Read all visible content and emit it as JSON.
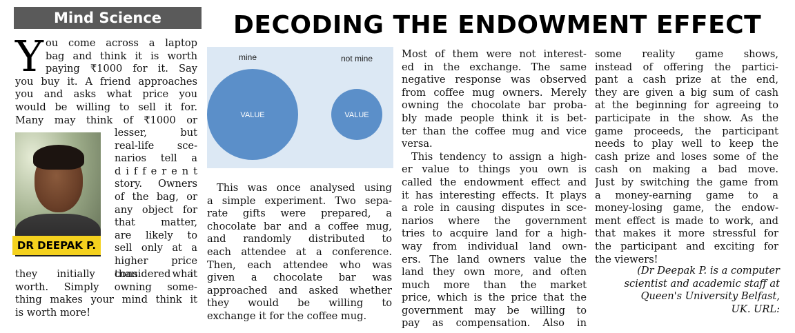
{
  "section": "Mind Science",
  "headline": "DECODING THE ENDOWMENT EFFECT",
  "byline": "DR DEEPAK P.",
  "dropcap": "Y",
  "col1": [
    "ou come across a laptop",
    "bag and think it is worth",
    "paying ₹1000 for it. Say",
    "you buy it. A friend approaches",
    "you and asks what price you",
    "would be willing to sell it for.",
    "Many may think of ₹1000 or",
    "lesser, but",
    "real-life sce-",
    "narios tell a",
    "d i f f e r e n t",
    "story. Owners",
    "of the bag, or",
    "any object for",
    "that matter,",
    "are likely to",
    "sell only at a",
    "higher price",
    "than what",
    "they initially considered it",
    "worth. Simply owning some-",
    "thing makes your mind think it",
    "is worth more!"
  ],
  "diagram": {
    "left_label": "mine",
    "right_label": "not mine",
    "left_circle": "VALUE",
    "right_circle": "VALUE",
    "circle_color": "#5b8fc9",
    "background": "#dce8f4"
  },
  "col2": [
    "This was once analysed using",
    "a simple experiment. Two sepa-",
    "rate gifts were prepared, a",
    "chocolate bar and a coffee mug,",
    "and randomly distributed to",
    "each attendee at a conference.",
    "Then, each attendee who was",
    "given a chocolate bar was",
    "approached and asked whether",
    "they would be willing to",
    "exchange it for the coffee mug."
  ],
  "col3": [
    "Most of them were not interest-",
    "ed in the exchange. The same",
    "negative response was observed",
    "from coffee mug owners. Merely",
    "owning the chocolate bar proba-",
    "bly made people think it is bet-",
    "ter than the coffee mug and vice",
    "versa.",
    "This tendency to assign a high-",
    "er value to things you own is",
    "called the endowment effect and",
    "it has interesting effects. It plays",
    "a role in causing disputes in sce-",
    "narios where the government",
    "tries to acquire land for a high-",
    "way from individual land own-",
    "ers. The land owners value the",
    "land they own more, and often",
    "much more than the market",
    "price, which is the price that the",
    "government may be willing to",
    "pay as compensation. Also in"
  ],
  "col4": [
    "some reality game shows,",
    "instead of offering the partici-",
    "pant a cash prize at the end,",
    "they are given a big sum of cash",
    "at the beginning for agreeing to",
    "participate in the show. As the",
    "game proceeds, the participant",
    "needs to play well to keep the",
    "cash prize and loses some of the",
    "cash on making a bad move.",
    "Just by switching the game from",
    "a money-earning game to a",
    "money-losing game, the endow-",
    "ment effect is made to work, and",
    "that makes it more stressful for",
    "the participant and exciting for",
    "the viewers!"
  ],
  "credit": [
    "(Dr Deepak P. is a computer",
    "scientist and academic staff at",
    "Queen's University Belfast,",
    "UK. URL:"
  ],
  "colors": {
    "section_bar": "#5a5a5a",
    "name_bar": "#f4d11e"
  }
}
